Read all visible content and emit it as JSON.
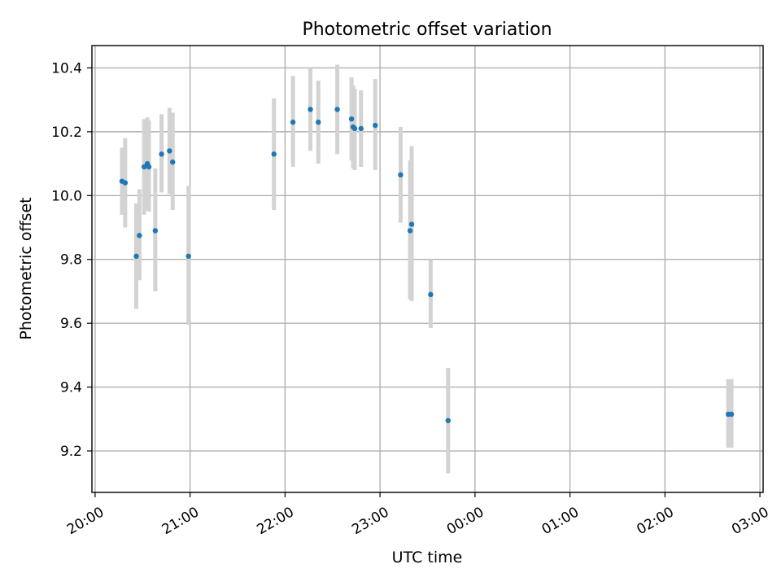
{
  "chart_data": {
    "type": "scatter",
    "title": "Photometric offset variation",
    "xlabel": "UTC time",
    "ylabel": "Photometric offset",
    "x_domain": [
      "19:58",
      "27:02"
    ],
    "ylim": [
      9.07,
      10.47
    ],
    "x_ticks": [
      {
        "t": "20:00",
        "label": "20:00"
      },
      {
        "t": "21:00",
        "label": "21:00"
      },
      {
        "t": "22:00",
        "label": "22:00"
      },
      {
        "t": "23:00",
        "label": "23:00"
      },
      {
        "t": "24:00",
        "label": "00:00"
      },
      {
        "t": "25:00",
        "label": "01:00"
      },
      {
        "t": "26:00",
        "label": "02:00"
      },
      {
        "t": "27:00",
        "label": "03:00"
      }
    ],
    "y_ticks": [
      {
        "v": 9.2,
        "label": "9.2"
      },
      {
        "v": 9.4,
        "label": "9.4"
      },
      {
        "v": 9.6,
        "label": "9.6"
      },
      {
        "v": 9.8,
        "label": "9.8"
      },
      {
        "v": 10.0,
        "label": "10.0"
      },
      {
        "v": 10.2,
        "label": "10.2"
      },
      {
        "v": 10.4,
        "label": "10.4"
      }
    ],
    "grid": true,
    "marker_color": "#1f77b4",
    "errorbar_color": "#d3d3d3",
    "points": [
      {
        "t": "20:17",
        "y": 10.045,
        "lo": 9.94,
        "hi": 10.15
      },
      {
        "t": "20:19",
        "y": 10.04,
        "lo": 9.9,
        "hi": 10.18
      },
      {
        "t": "20:26",
        "y": 9.81,
        "lo": 9.645,
        "hi": 9.975
      },
      {
        "t": "20:28",
        "y": 9.875,
        "lo": 9.735,
        "hi": 10.02
      },
      {
        "t": "20:31",
        "y": 10.09,
        "lo": 9.94,
        "hi": 10.24
      },
      {
        "t": "20:33",
        "y": 10.1,
        "lo": 9.955,
        "hi": 10.245
      },
      {
        "t": "20:34",
        "y": 10.09,
        "lo": 9.95,
        "hi": 10.235
      },
      {
        "t": "20:38",
        "y": 9.89,
        "lo": 9.7,
        "hi": 10.085
      },
      {
        "t": "20:42",
        "y": 10.13,
        "lo": 10.01,
        "hi": 10.255
      },
      {
        "t": "20:47",
        "y": 10.14,
        "lo": 10.005,
        "hi": 10.275
      },
      {
        "t": "20:49",
        "y": 10.105,
        "lo": 9.955,
        "hi": 10.26
      },
      {
        "t": "20:59",
        "y": 9.81,
        "lo": 9.595,
        "hi": 10.03
      },
      {
        "t": "21:53",
        "y": 10.13,
        "lo": 9.955,
        "hi": 10.305
      },
      {
        "t": "22:05",
        "y": 10.23,
        "lo": 10.09,
        "hi": 10.375
      },
      {
        "t": "22:16",
        "y": 10.27,
        "lo": 10.14,
        "hi": 10.4
      },
      {
        "t": "22:21",
        "y": 10.23,
        "lo": 10.1,
        "hi": 10.36
      },
      {
        "t": "22:33",
        "y": 10.27,
        "lo": 10.13,
        "hi": 10.41
      },
      {
        "t": "22:42",
        "y": 10.24,
        "lo": 10.11,
        "hi": 10.37
      },
      {
        "t": "22:43",
        "y": 10.215,
        "lo": 10.085,
        "hi": 10.345
      },
      {
        "t": "22:44",
        "y": 10.21,
        "lo": 10.08,
        "hi": 10.335
      },
      {
        "t": "22:48",
        "y": 10.21,
        "lo": 10.09,
        "hi": 10.33
      },
      {
        "t": "22:57",
        "y": 10.22,
        "lo": 10.08,
        "hi": 10.365
      },
      {
        "t": "23:13",
        "y": 10.065,
        "lo": 9.915,
        "hi": 10.215
      },
      {
        "t": "23:19",
        "y": 9.89,
        "lo": 9.675,
        "hi": 10.11
      },
      {
        "t": "23:20",
        "y": 9.91,
        "lo": 9.67,
        "hi": 10.155
      },
      {
        "t": "23:32",
        "y": 9.69,
        "lo": 9.585,
        "hi": 9.8
      },
      {
        "t": "23:43",
        "y": 9.295,
        "lo": 9.13,
        "hi": 9.46
      },
      {
        "t": "26:40",
        "y": 9.315,
        "lo": 9.21,
        "hi": 9.425
      },
      {
        "t": "26:42",
        "y": 9.315,
        "lo": 9.21,
        "hi": 9.425
      }
    ]
  }
}
